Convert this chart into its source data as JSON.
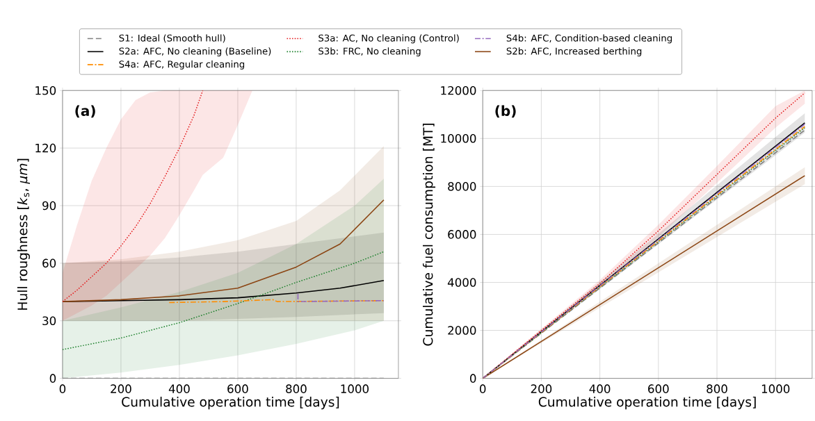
{
  "chart_data": [
    {
      "type": "line",
      "xlabel": "Cumulative operation time [days]",
      "ylabel": "Hull roughness [*k*$_{s}$, *μm*]",
      "xlim": [
        0,
        1150
      ],
      "ylim": [
        0,
        150
      ],
      "xticks": [
        0,
        200,
        400,
        600,
        800,
        1000
      ],
      "yticks": [
        0,
        30,
        60,
        90,
        120,
        150
      ],
      "grid": true,
      "legend": "top",
      "annotations": [
        "(a)"
      ],
      "series": [
        {
          "name": "S1: Ideal (Smooth hull)",
          "color": "#808080",
          "line_style": "dashed",
          "x": [
            0,
            1100
          ],
          "values": [
            0,
            0
          ]
        },
        {
          "name": "S2a: AFC, No cleaning (Baseline)",
          "color": "#000000",
          "line_style": "solid",
          "x": [
            0,
            200,
            400,
            600,
            800,
            950,
            1100
          ],
          "values": [
            40,
            40.5,
            41,
            42,
            44.5,
            47,
            51
          ],
          "lower": [
            30,
            30,
            30,
            31,
            32,
            33,
            34
          ],
          "upper": [
            60,
            61,
            63,
            66,
            70,
            73,
            76
          ]
        },
        {
          "name": "S2b: AFC, Increased berthing",
          "color": "#8b4513",
          "line_style": "solid",
          "x": [
            0,
            200,
            400,
            600,
            800,
            950,
            1100
          ],
          "values": [
            40,
            41,
            43,
            47,
            58,
            70,
            93
          ],
          "lower": [
            30,
            30,
            30,
            30,
            30,
            30,
            30
          ],
          "upper": [
            60,
            62,
            66,
            72,
            82,
            98,
            121
          ]
        },
        {
          "name": "S3a: AC, No cleaning (Control)",
          "color": "#e41a1c",
          "line_style": "dotted",
          "x": [
            0,
            50,
            100,
            150,
            200,
            250,
            300,
            350,
            400,
            450,
            480,
            550,
            600,
            650
          ],
          "values": [
            40,
            46,
            53,
            60,
            69,
            79,
            91,
            105,
            120,
            137,
            150,
            null,
            null,
            null
          ],
          "lower": [
            30,
            34,
            38,
            43,
            50,
            57,
            64,
            73,
            85,
            98,
            106,
            115,
            132,
            150
          ],
          "upper": [
            55,
            80,
            103,
            120,
            135,
            145,
            149,
            150,
            150,
            150,
            150,
            150,
            150,
            150
          ]
        },
        {
          "name": "S3b: FRC, No cleaning",
          "color": "#1a7f2a",
          "line_style": "dotted",
          "x": [
            0,
            200,
            400,
            600,
            800,
            1000,
            1100
          ],
          "values": [
            15,
            21,
            29,
            39,
            50,
            60,
            66
          ],
          "lower": [
            0,
            3,
            7,
            12,
            18,
            25,
            30
          ],
          "upper": [
            30,
            37,
            45,
            55,
            70,
            90,
            104
          ]
        },
        {
          "name": "S4a: AFC, Regular cleaning",
          "color": "#ff8c00",
          "line_style": "dashdot",
          "x": [
            365,
            550,
            720,
            735,
            1100
          ],
          "values": [
            39.5,
            40,
            41,
            40,
            40.5
          ]
        },
        {
          "name": "S4b: AFC, Condition-based cleaning",
          "color": "#9467bd",
          "line_style": "dashdot",
          "x": [
            806,
            806,
            1100
          ],
          "values": [
            44,
            40,
            40.5
          ]
        }
      ]
    },
    {
      "type": "line",
      "xlabel": "Cumulative operation time [days]",
      "ylabel": "Cumulative fuel consumption [MT]",
      "xlim": [
        0,
        1125
      ],
      "ylim": [
        0,
        12000
      ],
      "xticks": [
        0,
        200,
        400,
        600,
        800,
        1000
      ],
      "yticks": [
        0,
        2000,
        4000,
        6000,
        8000,
        10000,
        12000
      ],
      "grid": true,
      "annotations": [
        "(b)"
      ],
      "series": [
        {
          "color": "#808080",
          "line_style": "dashed",
          "x": [
            0,
            1100
          ],
          "values": [
            0,
            10350
          ]
        },
        {
          "color": "#000000",
          "line_style": "solid",
          "x": [
            0,
            200,
            400,
            600,
            800,
            1000,
            1100
          ],
          "values": [
            0,
            1940,
            3870,
            5810,
            7750,
            9680,
            10650
          ],
          "lower": [
            0,
            1870,
            3720,
            5590,
            7450,
            9300,
            10250
          ],
          "upper": [
            0,
            2010,
            4020,
            6030,
            8050,
            10060,
            11050
          ]
        },
        {
          "color": "#8b4513",
          "line_style": "solid",
          "x": [
            0,
            1100
          ],
          "values": [
            0,
            8450
          ],
          "lower": [
            0,
            8100
          ],
          "upper": [
            0,
            8800
          ]
        },
        {
          "color": "#e41a1c",
          "line_style": "dotted",
          "x": [
            0,
            200,
            400,
            600,
            800,
            1000,
            1100
          ],
          "values": [
            0,
            2000,
            3950,
            6150,
            8500,
            10850,
            11900
          ],
          "lower": [
            0,
            1930,
            3800,
            5900,
            8150,
            10450,
            11450
          ],
          "upper": [
            0,
            2070,
            4100,
            6400,
            8850,
            11350,
            12000
          ]
        },
        {
          "color": "#1a7f2a",
          "line_style": "dotted",
          "x": [
            0,
            1100
          ],
          "values": [
            0,
            10450
          ]
        },
        {
          "color": "#ff8c00",
          "line_style": "dashdot",
          "x": [
            0,
            1100
          ],
          "values": [
            0,
            10500
          ]
        },
        {
          "color": "#9467bd",
          "line_style": "dashdot",
          "x": [
            0,
            1100
          ],
          "values": [
            0,
            10600
          ]
        }
      ]
    }
  ]
}
